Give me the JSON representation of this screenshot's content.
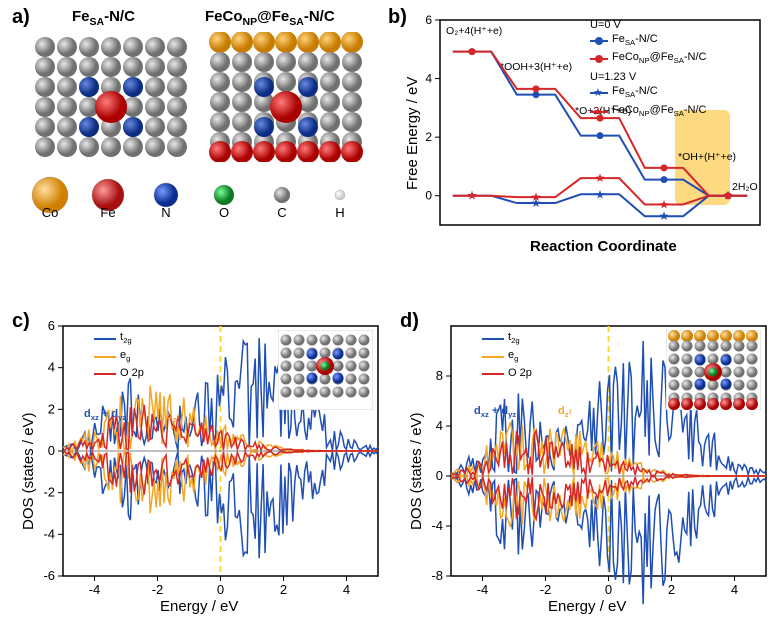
{
  "panel_a": {
    "label": "a)",
    "model1_title": "Fe<sub>SA</sub>-N/C",
    "model2_title": "FeCo<sub>NP</sub>@Fe<sub>SA</sub>-N/C",
    "atoms": [
      {
        "name": "Co",
        "color": "#f5a623",
        "r": 18
      },
      {
        "name": "Fe",
        "color": "#d62728",
        "r": 16
      },
      {
        "name": "N",
        "color": "#1f4fb4",
        "r": 12
      },
      {
        "name": "O",
        "color": "#2ca02c",
        "r": 10
      },
      {
        "name": "C",
        "color": "#9e9e9e",
        "r": 8
      },
      {
        "name": "H",
        "color": "#f0f0f0",
        "r": 5
      }
    ]
  },
  "panel_b": {
    "label": "b)",
    "ylabel": "Free Energy / eV",
    "xlabel": "Reaction Coordinate",
    "ylim": [
      -1,
      6
    ],
    "yticks": [
      0,
      2,
      4,
      6
    ],
    "steps": [
      "O₂+4(H⁺+e)",
      "*OOH+3(H⁺+e)",
      "*O+2(H⁺+e)",
      "*OH+(H⁺+e)",
      "2H₂O"
    ],
    "legend_header_u0": "U=0 V",
    "legend_header_u123": "U=1.23 V",
    "series": [
      {
        "label": "Fe<sub>SA</sub>-N/C",
        "color": "#1f4fb4",
        "marker": "circle",
        "values": [
          4.92,
          3.45,
          2.05,
          0.55,
          0.0
        ]
      },
      {
        "label": "FeCo<sub>NP</sub>@Fe<sub>SA</sub>-N/C",
        "color": "#d62728",
        "marker": "circle",
        "values": [
          4.92,
          3.65,
          2.65,
          0.95,
          0.0
        ]
      },
      {
        "label": "Fe<sub>SA</sub>-N/C",
        "color": "#1f4fb4",
        "marker": "star",
        "values": [
          0.0,
          -0.25,
          0.05,
          -0.7,
          0.0
        ]
      },
      {
        "label": "FeCo<sub>NP</sub>@Fe<sub>SA</sub>-N/C",
        "color": "#d62728",
        "marker": "star",
        "values": [
          0.0,
          -0.05,
          0.6,
          -0.3,
          0.0
        ]
      }
    ],
    "highlight_color": "#fbc02d",
    "frame_color": "#000000"
  },
  "dos_common": {
    "legend": [
      {
        "label": "t<sub>2g</sub>",
        "color": "#1f4fb4"
      },
      {
        "label": "e<sub>g</sub>",
        "color": "#f5a623"
      },
      {
        "label": "O 2p",
        "color": "#d62728"
      }
    ],
    "ann_dxzdyz": "d<sub>xz</sub> + d<sub>yz</sub>",
    "ann_dz2": "d<sub>z<sup>2</sup></sub>",
    "xlabel": "Energy / eV",
    "ylabel": "DOS (states / eV)",
    "xlim": [
      -5,
      5
    ],
    "xticks": [
      -4,
      -2,
      0,
      2,
      4
    ],
    "fermi_color": "#fdd835"
  },
  "panel_c": {
    "label": "c)",
    "ylim": [
      -6,
      6
    ],
    "yticks": [
      -6,
      -4,
      -2,
      0,
      2,
      4,
      6
    ]
  },
  "panel_d": {
    "label": "d)",
    "ylim": [
      -8,
      12
    ],
    "yticks": [
      -8,
      -4,
      0,
      4,
      8
    ]
  }
}
